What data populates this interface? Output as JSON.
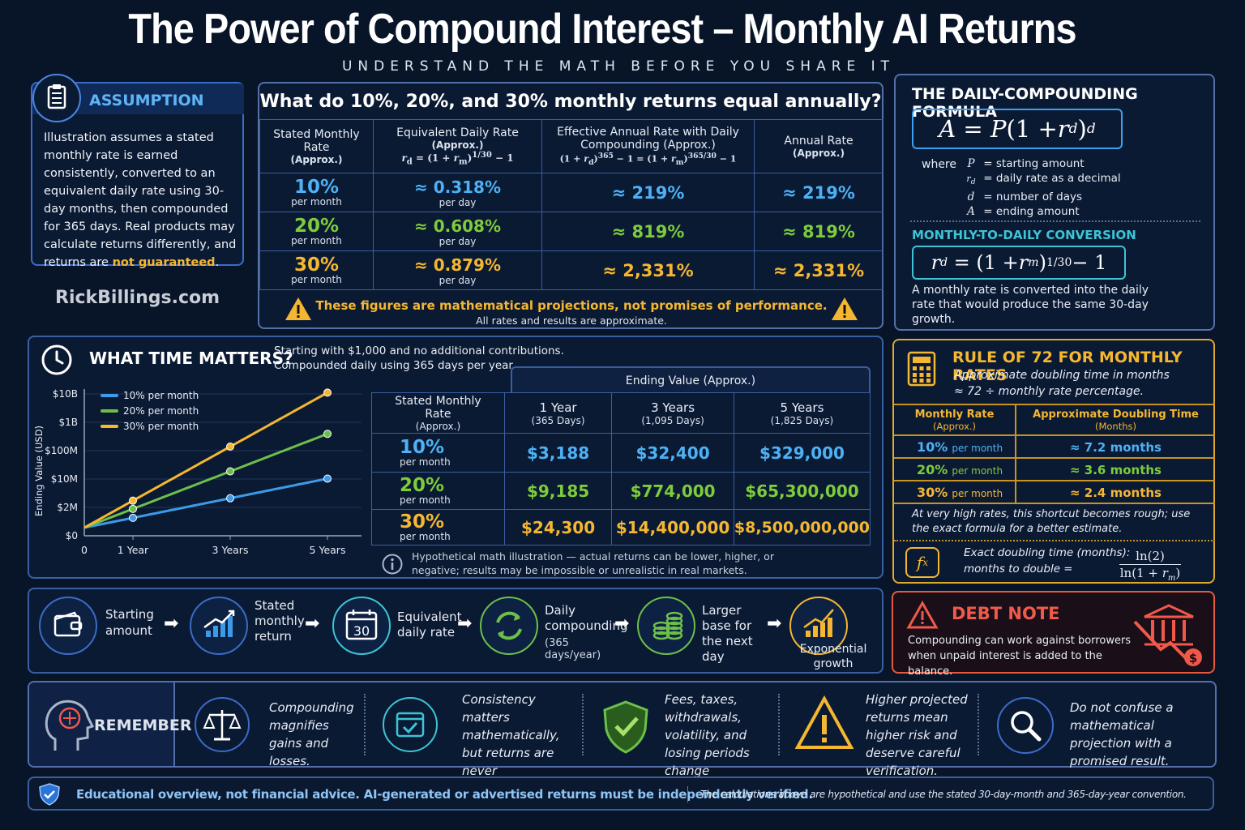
{
  "header": {
    "title": "The Power of Compound Interest – Monthly AI Returns",
    "subtitle": "UNDERSTAND THE MATH BEFORE YOU SHARE IT"
  },
  "assumption": {
    "title": "ASSUMPTION",
    "text_a": "Illustration assumes a stated monthly rate is earned consistently, converted to an equivalent daily rate using 30-day months, then compounded for 365 days. Real products may calculate returns differently, and returns are ",
    "text_b": "not guaranteed",
    "text_c": "."
  },
  "brand": "RickBillings.com",
  "annual": {
    "title": "What do 10%, 20%, and 30% monthly returns equal annually?",
    "h1": "Stated Monthly Rate",
    "h1s": "(Approx.)",
    "h2": "Equivalent Daily Rate",
    "h2s": "(Approx.)",
    "h2f": "r_d = (1 + r_m)^1/30 − 1",
    "h3": "Effective Annual Rate with Daily Compounding (Approx.)",
    "h3f": "(1 + r_d)^365 − 1 = (1 + r_m)^365/30 − 1",
    "h4": "Annual Rate",
    "h4s": "(Approx.)",
    "rows": [
      {
        "rate": "10%",
        "unit": "per month",
        "daily": "≈ 0.318%",
        "dunit": "per day",
        "eff": "≈ 219%",
        "annual": "≈ 219%"
      },
      {
        "rate": "20%",
        "unit": "per month",
        "daily": "≈ 0.608%",
        "dunit": "per day",
        "eff": "≈ 819%",
        "annual": "≈ 819%"
      },
      {
        "rate": "30%",
        "unit": "per month",
        "daily": "≈ 0.879%",
        "dunit": "per day",
        "eff": "≈ 2,331%",
        "annual": "≈ 2,331%"
      }
    ],
    "warn": "These figures are mathematical projections, not promises of performance.",
    "warn2": "All rates and results are approximate."
  },
  "formula": {
    "title": "THE DAILY-COMPOUNDING FORMULA",
    "where": "where",
    "defs": [
      {
        "sym": "P",
        "text": "= starting amount"
      },
      {
        "sym": "r_d",
        "text": "= daily rate as a decimal"
      },
      {
        "sym": "d",
        "text": "= number of days"
      },
      {
        "sym": "A",
        "text": "= ending amount"
      }
    ],
    "conv_title": "MONTHLY-TO-DAILY CONVERSION",
    "conv_text": "A monthly rate is converted into the daily rate that would produce the same 30-day growth."
  },
  "time": {
    "title": "WHAT TIME MATTERS?",
    "desc1": "Starting with $1,000 and no additional contributions.",
    "desc2": "Compounded daily using 365 days per year.",
    "ending_header": "Ending Value (Approx.)",
    "rate_header": "Stated Monthly Rate",
    "rate_header_s": "(Approx.)",
    "cols": [
      {
        "label": "1 Year",
        "sub": "(365 Days)"
      },
      {
        "label": "3 Years",
        "sub": "(1,095 Days)"
      },
      {
        "label": "5 Years",
        "sub": "(1,825 Days)"
      }
    ],
    "rows": [
      {
        "rate": "10%",
        "unit": "per month",
        "values": [
          "$3,188",
          "$32,400",
          "$329,000"
        ]
      },
      {
        "rate": "20%",
        "unit": "per month",
        "values": [
          "$9,185",
          "$774,000",
          "$65,300,000"
        ]
      },
      {
        "rate": "30%",
        "unit": "per month",
        "values": [
          "$24,300",
          "$14,400,000",
          "$8,500,000,000"
        ]
      }
    ],
    "note": "Hypothetical math illustration — actual returns can be lower, higher, or negative; results may be impossible or unrealistic in real markets."
  },
  "chart_data": {
    "type": "line",
    "ylabel": "Ending Value (USD)",
    "x": [
      "0",
      "1 Year",
      "3 Years",
      "5 Years"
    ],
    "yticks": [
      "$0",
      "$2M",
      "$10M",
      "$100M",
      "$1B",
      "$10B"
    ],
    "series": [
      {
        "name": "10% per month",
        "color": "#3d9ae8",
        "values": [
          1000,
          3188,
          32400,
          329000
        ]
      },
      {
        "name": "20% per month",
        "color": "#6cc04a",
        "values": [
          1000,
          9185,
          774000,
          65300000
        ]
      },
      {
        "name": "30% per month",
        "color": "#f5b731",
        "values": [
          1000,
          24300,
          14400000,
          8500000000
        ]
      }
    ]
  },
  "rule72": {
    "title": "RULE OF 72 FOR MONTHLY RATES",
    "sub1": "Approximate doubling time in months",
    "sub2": "≈ 72 ÷ monthly rate percentage.",
    "h1": "Monthly Rate",
    "h1s": "(Approx.)",
    "h2": "Approximate Doubling Time",
    "h2s": "(Months)",
    "rows": [
      {
        "rate": "10%",
        "unit": "per month",
        "time": "≈ 7.2 months"
      },
      {
        "rate": "20%",
        "unit": "per month",
        "time": "≈ 3.6 months"
      },
      {
        "rate": "30%",
        "unit": "per month",
        "time": "≈ 2.4 months"
      }
    ],
    "note": "At very high rates, this shortcut becomes rough; use the exact formula for a better estimate.",
    "exact1": "Exact doubling time (months):",
    "exact2": "months to double ="
  },
  "flow": [
    {
      "label": "Starting amount",
      "icon": "wallet-icon"
    },
    {
      "label": "Stated monthly return",
      "icon": "chart-up-icon"
    },
    {
      "label": "Equivalent daily rate",
      "icon": "calendar-icon",
      "num": "30"
    },
    {
      "label": "Daily compounding",
      "sub": "(365 days/year)",
      "icon": "cycle-icon"
    },
    {
      "label": "Larger base for the next day",
      "icon": "coins-icon"
    },
    {
      "label": "Exponential growth",
      "icon": "growth-icon"
    }
  ],
  "debt": {
    "title": "DEBT NOTE",
    "text": "Compounding can work against borrowers when unpaid interest is added to the balance."
  },
  "remember": {
    "title": "REMEMBER",
    "items": [
      {
        "text": "Compounding magnifies gains and losses.",
        "icon": "scales-icon"
      },
      {
        "text": "Consistency matters mathematically, but returns are never guaranteed.",
        "icon": "calendar-check-icon"
      },
      {
        "text": "Fees, taxes, withdrawals, volatility, and losing periods change outcomes.",
        "icon": "shield-check-icon"
      },
      {
        "text": "Higher projected returns mean higher risk and deserve careful verification.",
        "icon": "warning-icon"
      },
      {
        "text": "Do not confuse a mathematical projection with a promised result.",
        "icon": "magnifier-icon"
      }
    ]
  },
  "footer": {
    "left": "Educational overview, not financial advice. AI-generated or advertised returns must be independently verified.",
    "right": "The calculations above are hypothetical and use the stated 30-day-month and 365-day-year convention."
  }
}
